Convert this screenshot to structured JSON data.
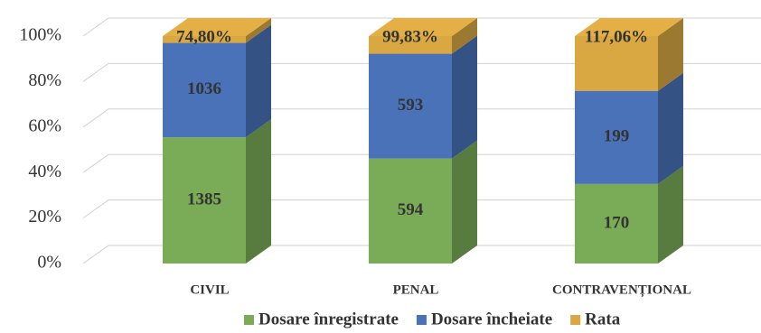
{
  "chart_data": {
    "type": "stacked_bar_100",
    "categories": [
      "CIVIL",
      "PENAL",
      "CONTRAVENȚIONAL"
    ],
    "series": [
      {
        "name": "Dosare înregistrate",
        "color": "#7aab57",
        "values": [
          1385,
          594,
          170
        ]
      },
      {
        "name": "Dosare încheiate",
        "color": "#4a72b8",
        "values": [
          1036,
          593,
          199
        ]
      },
      {
        "name": "Rata",
        "color": "#d9a843",
        "values": [
          74.8,
          99.83,
          117.06
        ],
        "value_labels": [
          "74,80%",
          "99,83%",
          "117,06%"
        ]
      }
    ],
    "ylim": [
      0,
      100
    ],
    "yticks": [
      {
        "value": 0,
        "label": "0%"
      },
      {
        "value": 20,
        "label": "20%"
      },
      {
        "value": 40,
        "label": "40%"
      },
      {
        "value": 60,
        "label": "60%"
      },
      {
        "value": 80,
        "label": "80%"
      },
      {
        "value": 100,
        "label": "100%"
      }
    ],
    "grid": true,
    "legend": "bottom"
  }
}
